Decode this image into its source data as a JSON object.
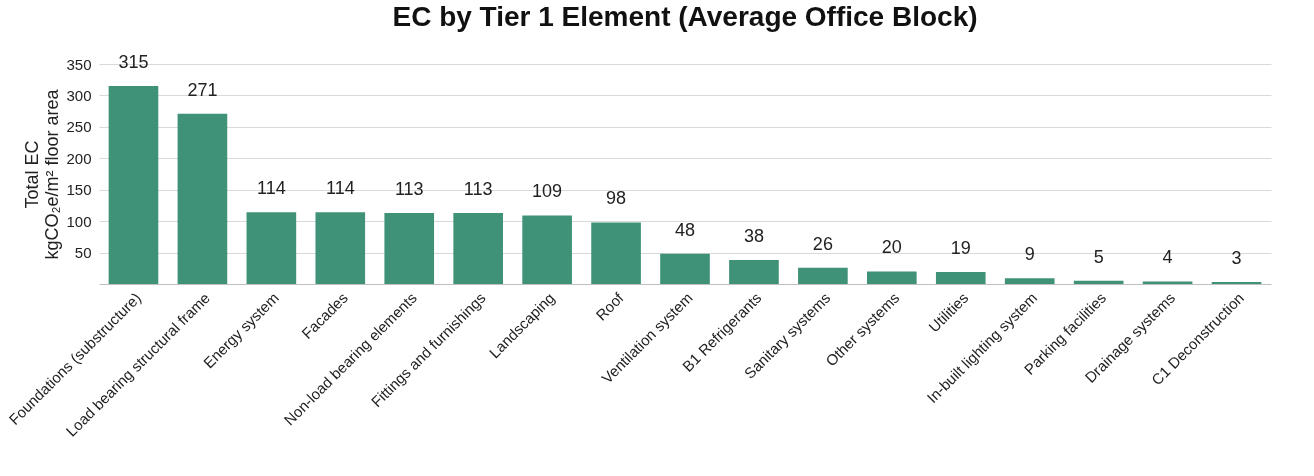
{
  "chart_data": {
    "type": "bar",
    "title": "EC by Tier 1 Element (Average Office Block)",
    "ylabel": "Total EC\nkgCO₂e/m² floor area",
    "categories": [
      "Foundations (substructure)",
      "Load bearing structural frame",
      "Energy system",
      "Facades",
      "Non-load bearing elements",
      "Fittings and furnishings",
      "Landscaping",
      "Roof",
      "Ventilation system",
      "B1 Refrigerants",
      "Sanitary systems",
      "Other systems",
      "Utilities",
      "In-built lighting system",
      "Parking facilities",
      "Drainage systems",
      "C1 Deconstruction"
    ],
    "values": [
      315,
      271,
      114,
      114,
      113,
      113,
      109,
      98,
      48,
      38,
      26,
      20,
      19,
      9,
      5,
      4,
      3
    ],
    "color": "#3f9178",
    "ylim": [
      0,
      350
    ],
    "yticks": [
      50,
      100,
      150,
      200,
      250,
      300,
      350
    ],
    "grid": "y",
    "data_labels": true
  }
}
